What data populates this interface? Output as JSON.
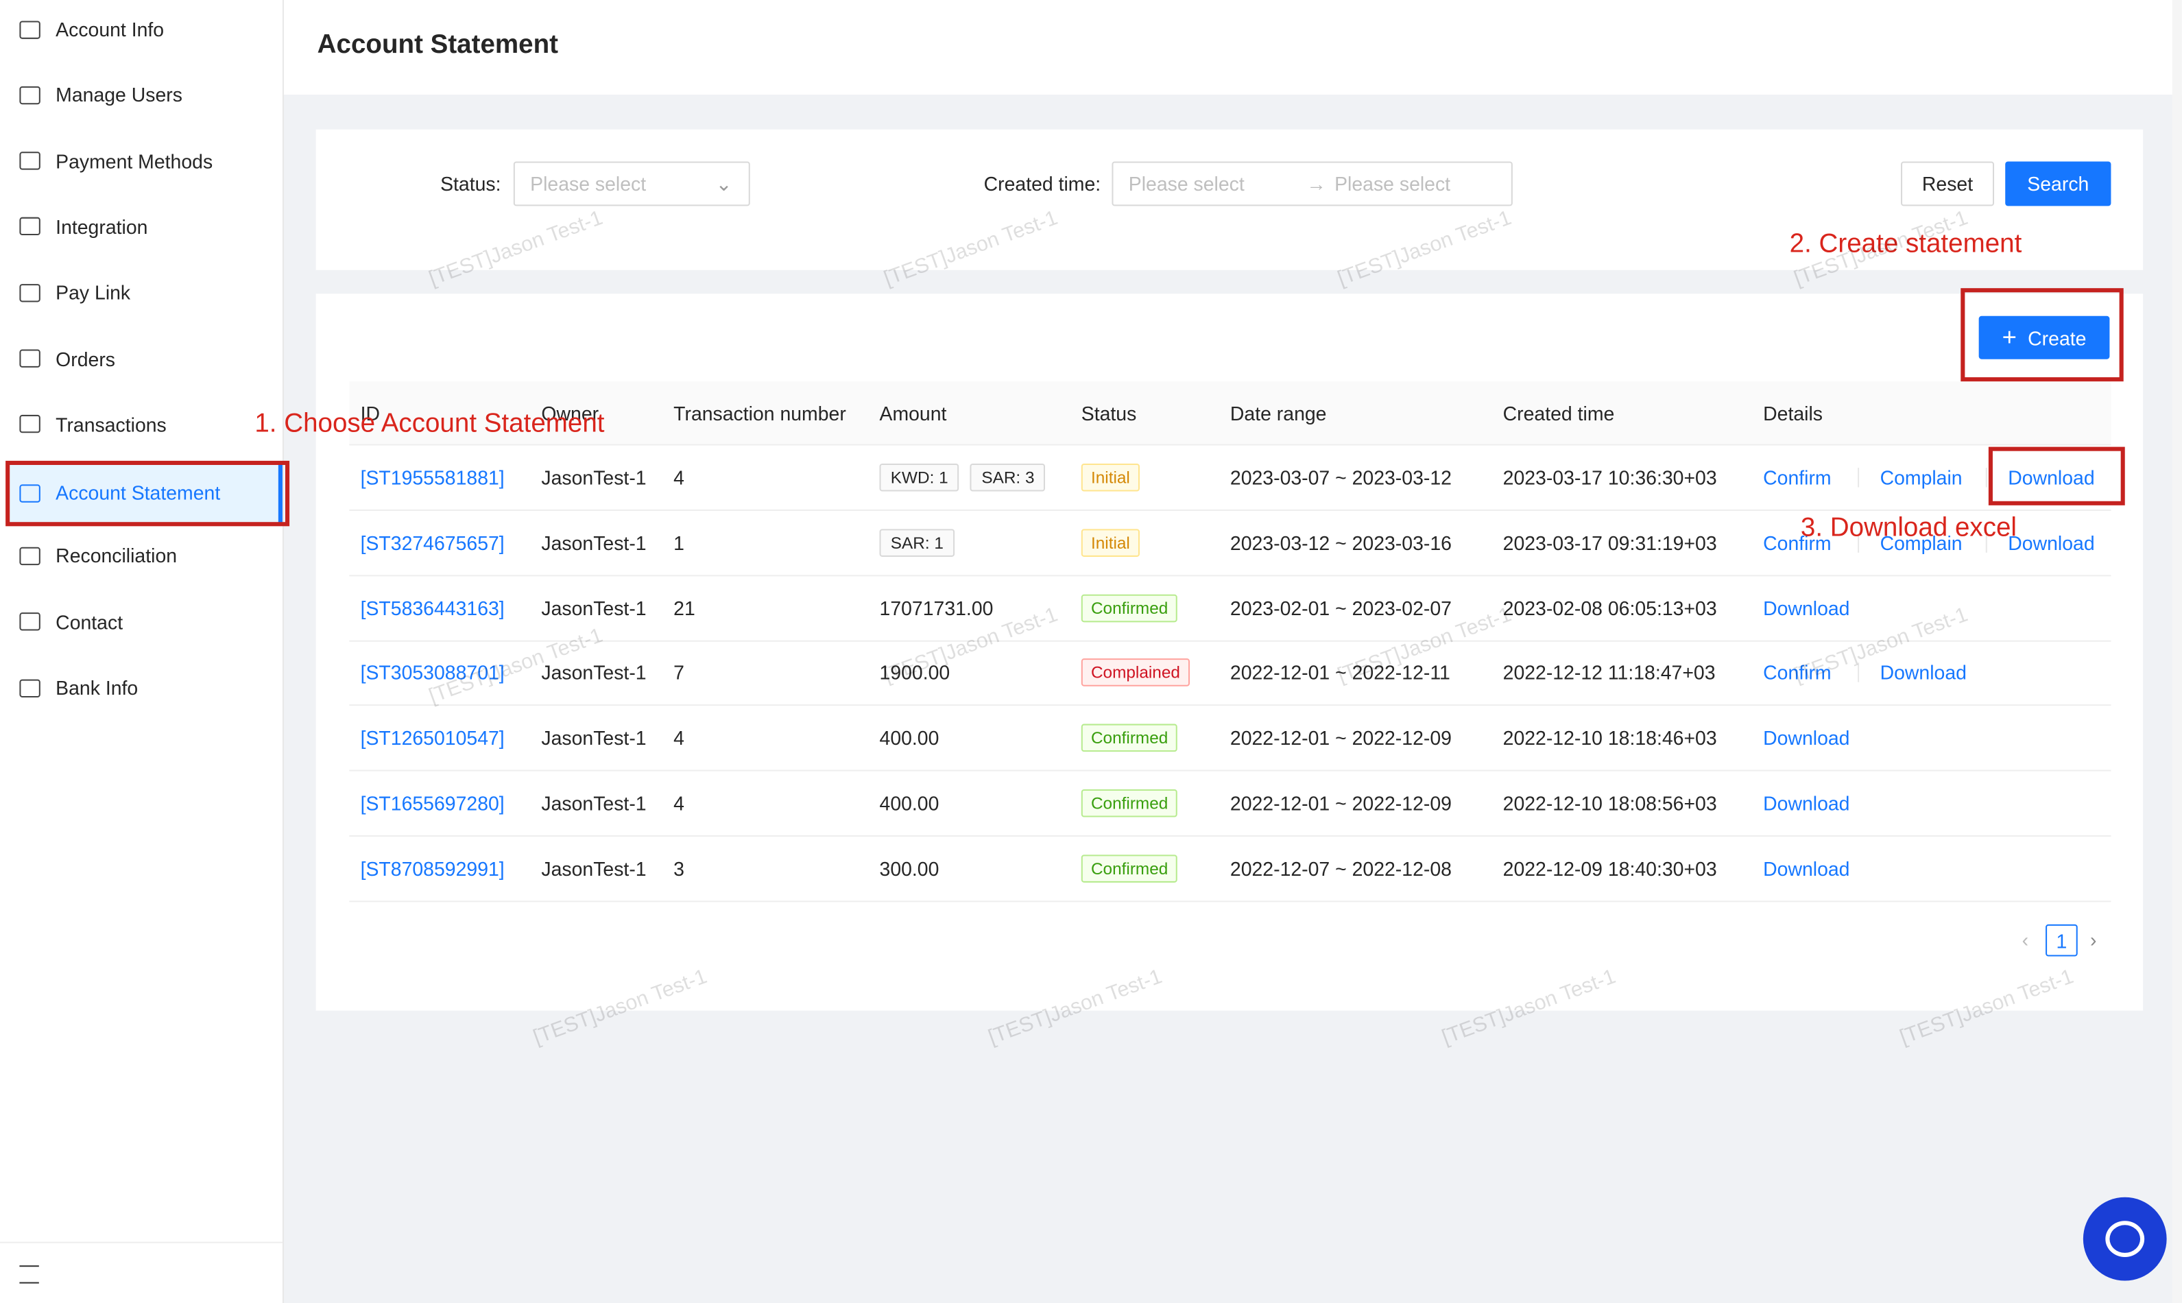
{
  "sidebar": {
    "items": [
      "Account Info",
      "Manage Users",
      "Payment Methods",
      "Integration",
      "Pay Link",
      "Orders",
      "Transactions",
      "Account Statement",
      "Reconciliation",
      "Contact",
      "Bank Info"
    ],
    "active": 7
  },
  "header": {
    "title": "Account Statement"
  },
  "filters": {
    "status_label": "Status:",
    "status_placeholder": "Please select",
    "created_label": "Created time:",
    "start_placeholder": "Please select",
    "end_placeholder": "Please select",
    "reset": "Reset",
    "search": "Search"
  },
  "create": "Create",
  "table": {
    "columns": [
      "ID",
      "Owner",
      "Transaction number",
      "Amount",
      "Status",
      "Date range",
      "Created time",
      "Details"
    ],
    "rows": [
      {
        "id": "[ST1955581881]",
        "owner": "JasonTest-1",
        "transactions": 4,
        "amount_tags": [
          "KWD: 1",
          "SAR: 3"
        ],
        "status": "Initial",
        "status_color": "orange",
        "date_range": "2023-03-07 ~ 2023-03-12",
        "created": "2023-03-17 10:36:30+03",
        "actions": [
          "Confirm",
          "Complain",
          "Download"
        ]
      },
      {
        "id": "[ST3274675657]",
        "owner": "JasonTest-1",
        "transactions": 1,
        "amount_tags": [
          "SAR: 1"
        ],
        "status": "Initial",
        "status_color": "orange",
        "date_range": "2023-03-12 ~ 2023-03-16",
        "created": "2023-03-17 09:31:19+03",
        "actions": [
          "Confirm",
          "Complain",
          "Download"
        ]
      },
      {
        "id": "[ST5836443163]",
        "owner": "JasonTest-1",
        "transactions": 21,
        "amount": "17071731.00",
        "status": "Confirmed",
        "status_color": "green",
        "date_range": "2023-02-01 ~ 2023-02-07",
        "created": "2023-02-08 06:05:13+03",
        "actions": [
          "Download"
        ]
      },
      {
        "id": "[ST3053088701]",
        "owner": "JasonTest-1",
        "transactions": 7,
        "amount": "1900.00",
        "status": "Complained",
        "status_color": "red",
        "date_range": "2022-12-01 ~ 2022-12-11",
        "created": "2022-12-12 11:18:47+03",
        "actions": [
          "Confirm",
          "Download"
        ]
      },
      {
        "id": "[ST1265010547]",
        "owner": "JasonTest-1",
        "transactions": 4,
        "amount": "400.00",
        "status": "Confirmed",
        "status_color": "green",
        "date_range": "2022-12-01 ~ 2022-12-09",
        "created": "2022-12-10 18:18:46+03",
        "actions": [
          "Download"
        ]
      },
      {
        "id": "[ST1655697280]",
        "owner": "JasonTest-1",
        "transactions": 4,
        "amount": "400.00",
        "status": "Confirmed",
        "status_color": "green",
        "date_range": "2022-12-01 ~ 2022-12-09",
        "created": "2022-12-10 18:08:56+03",
        "actions": [
          "Download"
        ]
      },
      {
        "id": "[ST8708592991]",
        "owner": "JasonTest-1",
        "transactions": 3,
        "amount": "300.00",
        "status": "Confirmed",
        "status_color": "green",
        "date_range": "2022-12-07 ~ 2022-12-08",
        "created": "2022-12-09 18:40:30+03",
        "actions": [
          "Download"
        ]
      }
    ]
  },
  "pagination": {
    "current": 1
  },
  "annotations": [
    "1. Choose Account Statement",
    "2. Create statement",
    "3. Download excel"
  ],
  "watermark": "[TEST]Jason Test-1"
}
